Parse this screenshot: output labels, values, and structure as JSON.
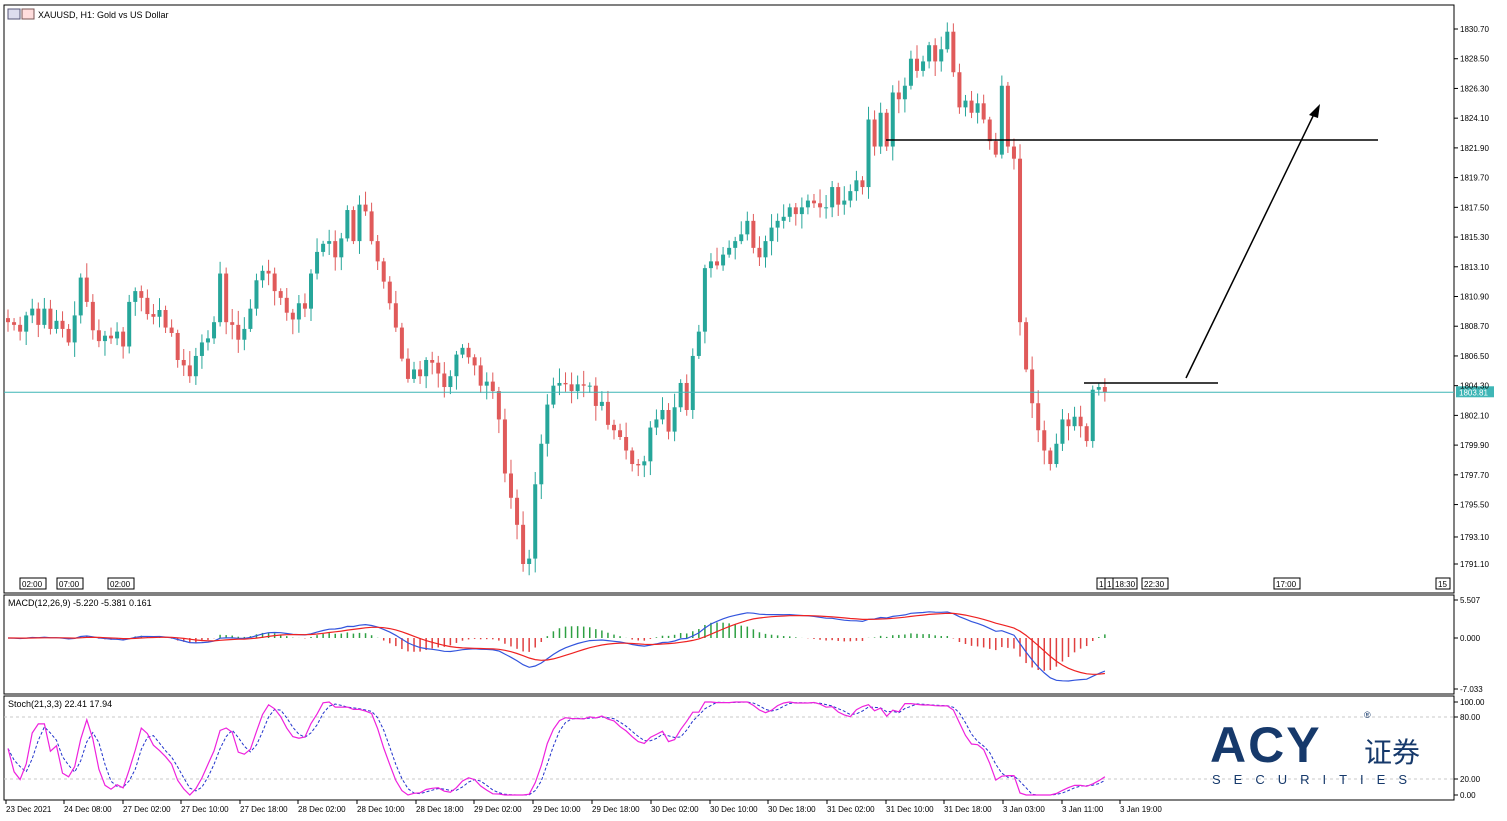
{
  "title": "XAUUSD, H1:  Gold vs US Dollar",
  "colors": {
    "bull": "#26a69a",
    "bear": "#e05a5a",
    "line": "#3fb6b6",
    "macd_main": "#3355dd",
    "macd_signal": "#ee2222",
    "hist_up": "#2ea043",
    "hist_down": "#e04040",
    "stoch_main": "#ee22dd",
    "stoch_signal": "#2233cc",
    "frame": "#000000",
    "grid": "#c8c8c8",
    "price_label_bg": "#3fb6b6"
  },
  "chart_data": {
    "type": "candlestick",
    "price_axis_ticks": [
      "1830.70",
      "1828.50",
      "1826.30",
      "1824.10",
      "1821.90",
      "1819.70",
      "1817.50",
      "1815.30",
      "1813.10",
      "1810.90",
      "1808.70",
      "1806.50",
      "1804.30",
      "1802.10",
      "1799.90",
      "1797.70",
      "1795.50",
      "1793.10",
      "1791.10"
    ],
    "ylim": [
      1789.9,
      1832.0
    ],
    "current_price": "1803.81",
    "x_axis_labels": [
      "23 Dec 2021",
      "24 Dec 08:00",
      "27 Dec 02:00",
      "27 Dec 10:00",
      "27 Dec 18:00",
      "28 Dec 02:00",
      "28 Dec 10:00",
      "28 Dec 18:00",
      "29 Dec 02:00",
      "29 Dec 10:00",
      "29 Dec 18:00",
      "30 Dec 02:00",
      "30 Dec 10:00",
      "30 Dec 18:00",
      "31 Dec 02:00",
      "31 Dec 10:00",
      "31 Dec 18:00",
      "3 Jan 03:00",
      "3 Jan 11:00",
      "3 Jan 19:00"
    ],
    "period_markers_left": [
      "02:00",
      "07:00",
      "02:00"
    ],
    "period_markers_right": [
      "1",
      "1",
      "18:30",
      "22:30",
      "17:00",
      "15"
    ],
    "closes": [
      1809.0,
      1808.8,
      1808.3,
      1809.5,
      1810.0,
      1808.8,
      1810.0,
      1808.5,
      1809.1,
      1808.5,
      1807.5,
      1809.5,
      1812.3,
      1810.5,
      1808.4,
      1807.6,
      1808.0,
      1807.8,
      1808.3,
      1807.2,
      1810.5,
      1811.3,
      1810.8,
      1809.6,
      1809.4,
      1809.9,
      1808.6,
      1808.2,
      1806.2,
      1805.8,
      1805.0,
      1806.5,
      1807.5,
      1807.8,
      1809.0,
      1812.6,
      1809.0,
      1808.8,
      1807.7,
      1808.5,
      1810.0,
      1812.1,
      1812.8,
      1812.6,
      1811.3,
      1810.8,
      1809.7,
      1809.2,
      1810.4,
      1810.0,
      1812.6,
      1814.2,
      1814.8,
      1815.0,
      1813.8,
      1815.2,
      1817.3,
      1815.0,
      1817.7,
      1817.2,
      1815.0,
      1813.5,
      1812.0,
      1810.4,
      1808.6,
      1806.3,
      1804.8,
      1805.5,
      1805.0,
      1806.2,
      1806.0,
      1805.2,
      1804.2,
      1805.0,
      1806.6,
      1807.1,
      1806.4,
      1805.8,
      1804.3,
      1804.6,
      1803.9,
      1801.8,
      1797.8,
      1796.0,
      1794.0,
      1791.1,
      1791.5,
      1797.0,
      1800.0,
      1802.9,
      1804.3,
      1804.5,
      1804.4,
      1803.9,
      1804.4,
      1804.3,
      1804.3,
      1802.8,
      1803.1,
      1801.4,
      1801.0,
      1800.5,
      1799.5,
      1798.5,
      1798.4,
      1798.7,
      1801.2,
      1801.8,
      1802.5,
      1800.9,
      1802.7,
      1804.5,
      1802.5,
      1806.5,
      1808.3,
      1813.0,
      1813.5,
      1813.2,
      1814.0,
      1814.5,
      1815.0,
      1815.5,
      1816.5,
      1814.5,
      1813.8,
      1815.0,
      1816.0,
      1816.5,
      1816.8,
      1817.5,
      1817.0,
      1817.5,
      1818.0,
      1817.8,
      1817.5,
      1817.5,
      1819.0,
      1817.7,
      1818.0,
      1818.7,
      1819.5,
      1819.0,
      1824.0,
      1822.0,
      1824.5,
      1822.0,
      1826.0,
      1825.5,
      1826.5,
      1828.5,
      1827.6,
      1828.3,
      1829.5,
      1828.3,
      1829.2,
      1830.5,
      1827.5,
      1824.9,
      1825.4,
      1824.5,
      1825.2,
      1824.0,
      1822.4,
      1821.4,
      1826.5,
      1822.0,
      1821.1,
      1809.0,
      1805.5,
      1803.0,
      1801.0,
      1799.5,
      1798.5,
      1800.0,
      1801.8,
      1801.3,
      1802.0,
      1801.3,
      1800.2,
      1804.0,
      1804.2,
      1803.8
    ]
  },
  "annotations": {
    "resistance_label": "",
    "support_label": ""
  },
  "macd": {
    "label": "MACD(12,26,9) -5.220 -5.381 0.161",
    "ticks": [
      "5.507",
      "0.000",
      "-7.033"
    ]
  },
  "stoch": {
    "label": "Stoch(21,3,3) 22.41 17.94",
    "ticks": [
      "100.00",
      "80.00",
      "20.00",
      "0.00"
    ]
  },
  "logo": {
    "brand": "ACY",
    "cn": "证券",
    "sub": "SECURITIES",
    "reg": "®"
  }
}
